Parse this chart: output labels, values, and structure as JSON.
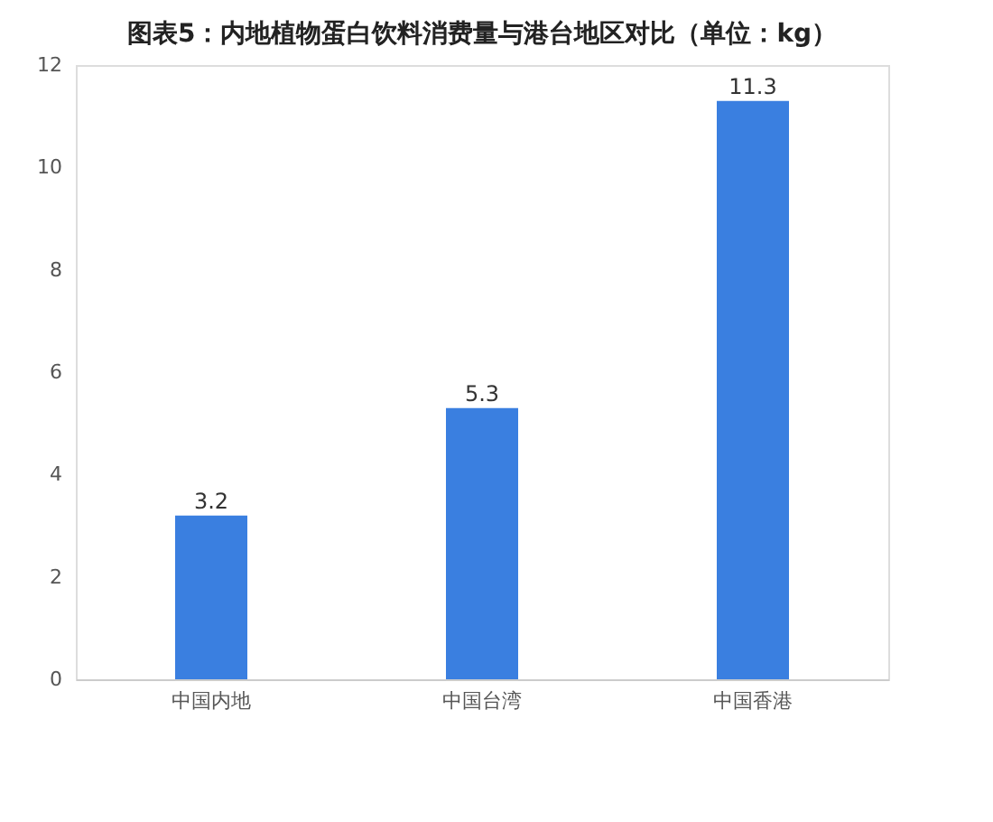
{
  "chart_data": {
    "type": "bar",
    "title": "图表5：内地植物蛋白饮料消费量与港台地区对比（单位：kg）",
    "categories": [
      "中国内地",
      "中国台湾",
      "中国香港"
    ],
    "values": [
      3.2,
      5.3,
      11.3
    ],
    "color": "#3a7fe0",
    "ylim": [
      0,
      12
    ],
    "yticks": [
      0,
      2,
      4,
      6,
      8,
      10,
      12
    ],
    "grid": false,
    "data_labels": true
  }
}
